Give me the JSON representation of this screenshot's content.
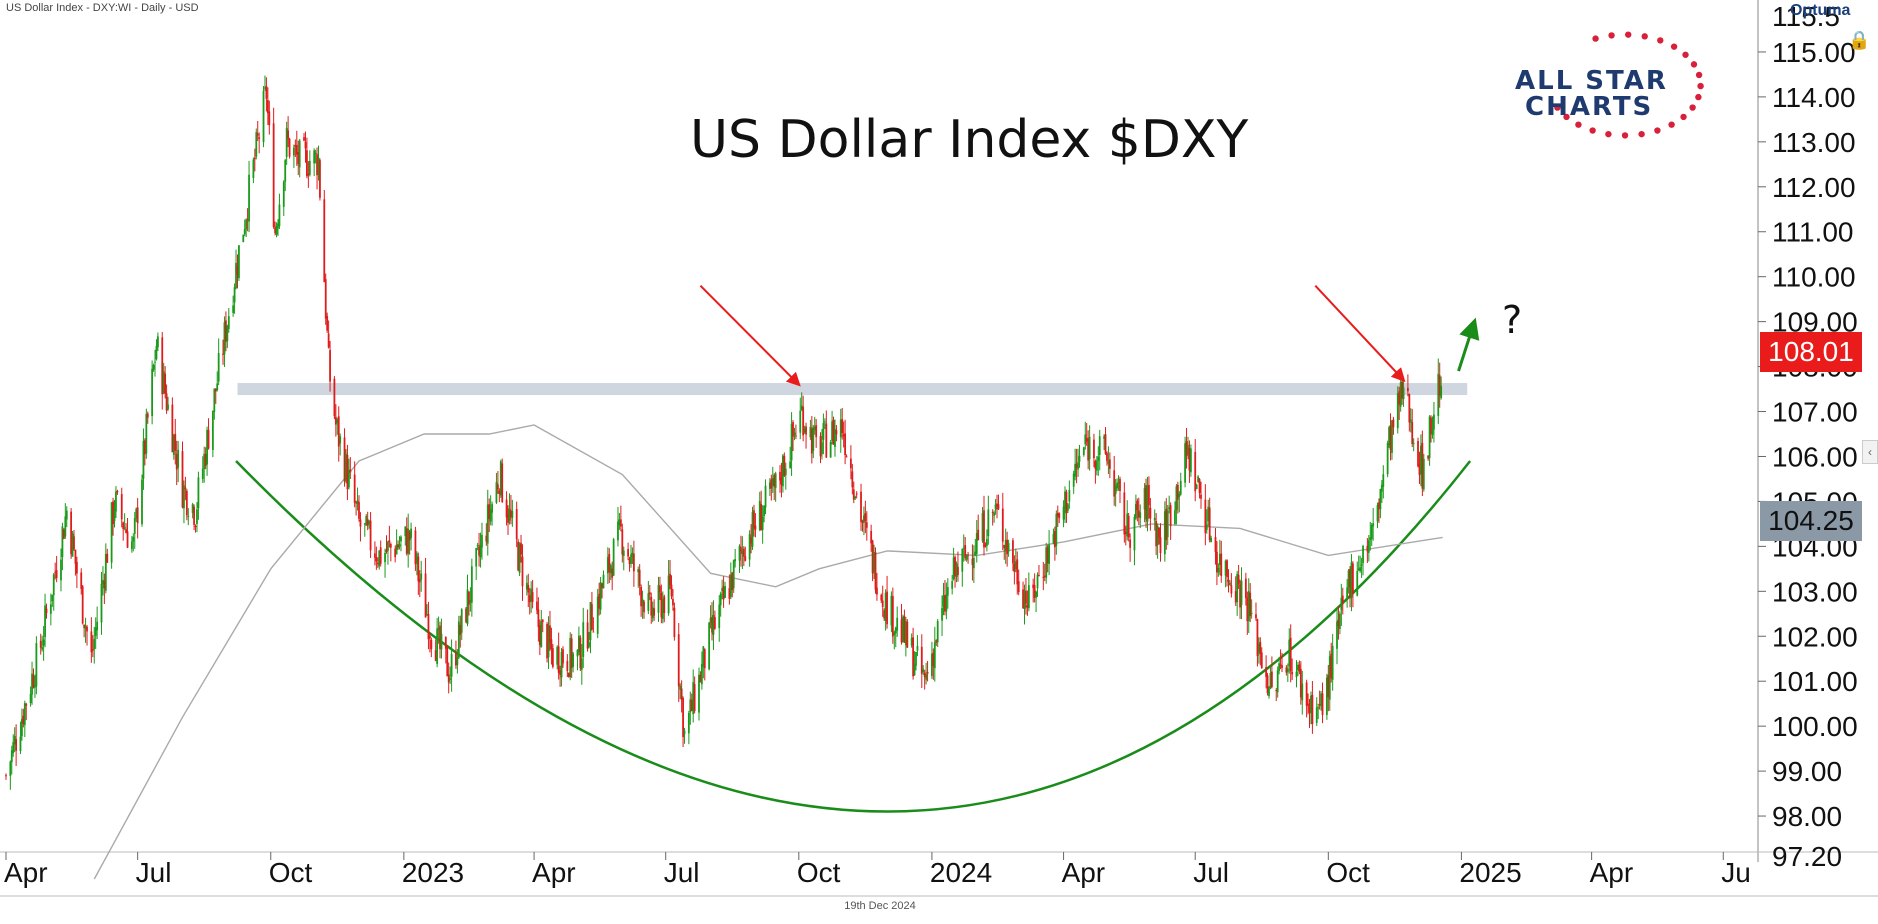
{
  "header": {
    "label": "US Dollar Index - DXY:WI - Daily - USD"
  },
  "branding": {
    "optuma": "Optuma",
    "logo_line1": "ALL STAR",
    "logo_line2": "CHARTS"
  },
  "footer": {
    "date": "19th Dec 2024"
  },
  "annotations": {
    "question_mark": "?"
  },
  "colors": {
    "up_candle": "#1a9a1a",
    "down_candle": "#e01b1b",
    "resistance_band": "#cfd6df",
    "cup_curve": "#1a8c1a",
    "moving_average": "#aaaaaa",
    "arrows_red": "#ea1b1b",
    "arrow_green": "#1a8c1a",
    "brand_navy": "#1f3a6e",
    "brand_star": "#d9203a"
  },
  "chart_data": {
    "type": "candlestick",
    "title": "US Dollar Index $DXY",
    "y_axis": {
      "side": "right",
      "ylim": [
        97.2,
        115.8
      ],
      "ticks": [
        "115.00",
        "114.00",
        "113.00",
        "112.00",
        "111.00",
        "110.00",
        "109.00",
        "108.00",
        "107.00",
        "106.00",
        "105.00",
        "104.00",
        "103.00",
        "102.00",
        "101.00",
        "100.00",
        "99.00",
        "98.00"
      ],
      "tick_values": [
        115,
        114,
        113,
        112,
        111,
        110,
        109,
        108,
        107,
        106,
        105,
        104,
        103,
        102,
        101,
        100,
        99,
        98
      ],
      "cut_labels": {
        "top": "115.5",
        "bottom": "97.20"
      }
    },
    "x_axis": {
      "ticks": [
        "Apr",
        "Jul",
        "Oct",
        "2023",
        "Apr",
        "Jul",
        "Oct",
        "2024",
        "Apr",
        "Jul",
        "Oct",
        "2025",
        "Apr",
        "Ju"
      ],
      "tick_dates": [
        "2022-04-01",
        "2022-07-01",
        "2022-10-01",
        "2023-01-01",
        "2023-04-01",
        "2023-07-01",
        "2023-10-01",
        "2024-01-01",
        "2024-04-01",
        "2024-07-01",
        "2024-10-01",
        "2025-01-01",
        "2025-04-01",
        "2025-07-01"
      ]
    },
    "x_range": [
      "2022-04-01",
      "2025-07-25"
    ],
    "last_price": "108.01",
    "ma_value": "104.25",
    "resistance": {
      "level": 107.5,
      "from": "2022-09-08",
      "to": "2025-01-05"
    },
    "price_path": [
      [
        "2022-04-01",
        98.9
      ],
      [
        "2022-04-25",
        101.8
      ],
      [
        "2022-05-13",
        104.8
      ],
      [
        "2022-05-30",
        101.5
      ],
      [
        "2022-06-15",
        105.0
      ],
      [
        "2022-06-28",
        104.0
      ],
      [
        "2022-07-14",
        108.5
      ],
      [
        "2022-08-01",
        105.3
      ],
      [
        "2022-08-10",
        104.8
      ],
      [
        "2022-09-06",
        110.0
      ],
      [
        "2022-09-28",
        114.1
      ],
      [
        "2022-10-04",
        111.0
      ],
      [
        "2022-10-12",
        113.0
      ],
      [
        "2022-10-20",
        112.6
      ],
      [
        "2022-11-03",
        112.6
      ],
      [
        "2022-11-10",
        108.0
      ],
      [
        "2022-11-15",
        106.7
      ],
      [
        "2022-12-01",
        104.5
      ],
      [
        "2022-12-15",
        103.8
      ],
      [
        "2023-01-05",
        104.2
      ],
      [
        "2023-01-20",
        102.1
      ],
      [
        "2023-02-02",
        101.2
      ],
      [
        "2023-03-08",
        105.6
      ],
      [
        "2023-03-31",
        102.5
      ],
      [
        "2023-04-14",
        101.6
      ],
      [
        "2023-05-01",
        101.5
      ],
      [
        "2023-05-31",
        104.3
      ],
      [
        "2023-06-20",
        102.5
      ],
      [
        "2023-07-05",
        103.0
      ],
      [
        "2023-07-14",
        99.8
      ],
      [
        "2023-08-01",
        102.0
      ],
      [
        "2023-08-25",
        104.1
      ],
      [
        "2023-09-15",
        105.3
      ],
      [
        "2023-10-03",
        107.0
      ],
      [
        "2023-10-13",
        106.2
      ],
      [
        "2023-10-31",
        106.7
      ],
      [
        "2023-11-15",
        104.4
      ],
      [
        "2023-11-29",
        102.8
      ],
      [
        "2023-12-14",
        101.9
      ],
      [
        "2023-12-27",
        101.0
      ],
      [
        "2024-01-15",
        103.3
      ],
      [
        "2024-02-14",
        104.8
      ],
      [
        "2024-03-08",
        102.7
      ],
      [
        "2024-03-28",
        104.5
      ],
      [
        "2024-04-16",
        106.3
      ],
      [
        "2024-05-01",
        106.0
      ],
      [
        "2024-05-15",
        104.3
      ],
      [
        "2024-05-29",
        105.0
      ],
      [
        "2024-06-07",
        104.1
      ],
      [
        "2024-06-26",
        106.1
      ],
      [
        "2024-07-17",
        103.7
      ],
      [
        "2024-08-05",
        102.9
      ],
      [
        "2024-08-23",
        100.7
      ],
      [
        "2024-09-03",
        101.7
      ],
      [
        "2024-09-17",
        100.5
      ],
      [
        "2024-09-27",
        100.4
      ],
      [
        "2024-10-15",
        103.2
      ],
      [
        "2024-11-01",
        104.3
      ],
      [
        "2024-11-12",
        106.3
      ],
      [
        "2024-11-22",
        107.5
      ],
      [
        "2024-12-05",
        105.7
      ],
      [
        "2024-12-19",
        108.0
      ]
    ],
    "moving_average_path": [
      [
        "2022-06-01",
        96.6
      ],
      [
        "2022-08-01",
        100.2
      ],
      [
        "2022-10-01",
        103.5
      ],
      [
        "2022-12-01",
        105.9
      ],
      [
        "2023-01-15",
        106.5
      ],
      [
        "2023-03-01",
        106.5
      ],
      [
        "2023-04-01",
        106.7
      ],
      [
        "2023-06-01",
        105.6
      ],
      [
        "2023-08-01",
        103.4
      ],
      [
        "2023-09-15",
        103.1
      ],
      [
        "2023-10-15",
        103.5
      ],
      [
        "2023-12-01",
        103.9
      ],
      [
        "2024-02-01",
        103.8
      ],
      [
        "2024-04-01",
        104.1
      ],
      [
        "2024-06-01",
        104.5
      ],
      [
        "2024-08-01",
        104.4
      ],
      [
        "2024-10-01",
        103.8
      ],
      [
        "2024-12-19",
        104.2
      ]
    ],
    "cup_curve": {
      "start": [
        "2022-09-07",
        105.9
      ],
      "bottom": [
        "2023-12-01",
        98.1
      ],
      "end": [
        "2025-01-07",
        105.9
      ]
    },
    "arrows": [
      {
        "color": "red",
        "from": [
          "2023-07-25",
          109.8
        ],
        "to": [
          "2023-10-01",
          107.6
        ]
      },
      {
        "color": "red",
        "from": [
          "2024-09-22",
          109.8
        ],
        "to": [
          "2024-11-22",
          107.7
        ]
      },
      {
        "color": "green",
        "from": [
          "2024-12-30",
          107.9
        ],
        "to": [
          "2025-01-10",
          109.0
        ]
      }
    ]
  }
}
